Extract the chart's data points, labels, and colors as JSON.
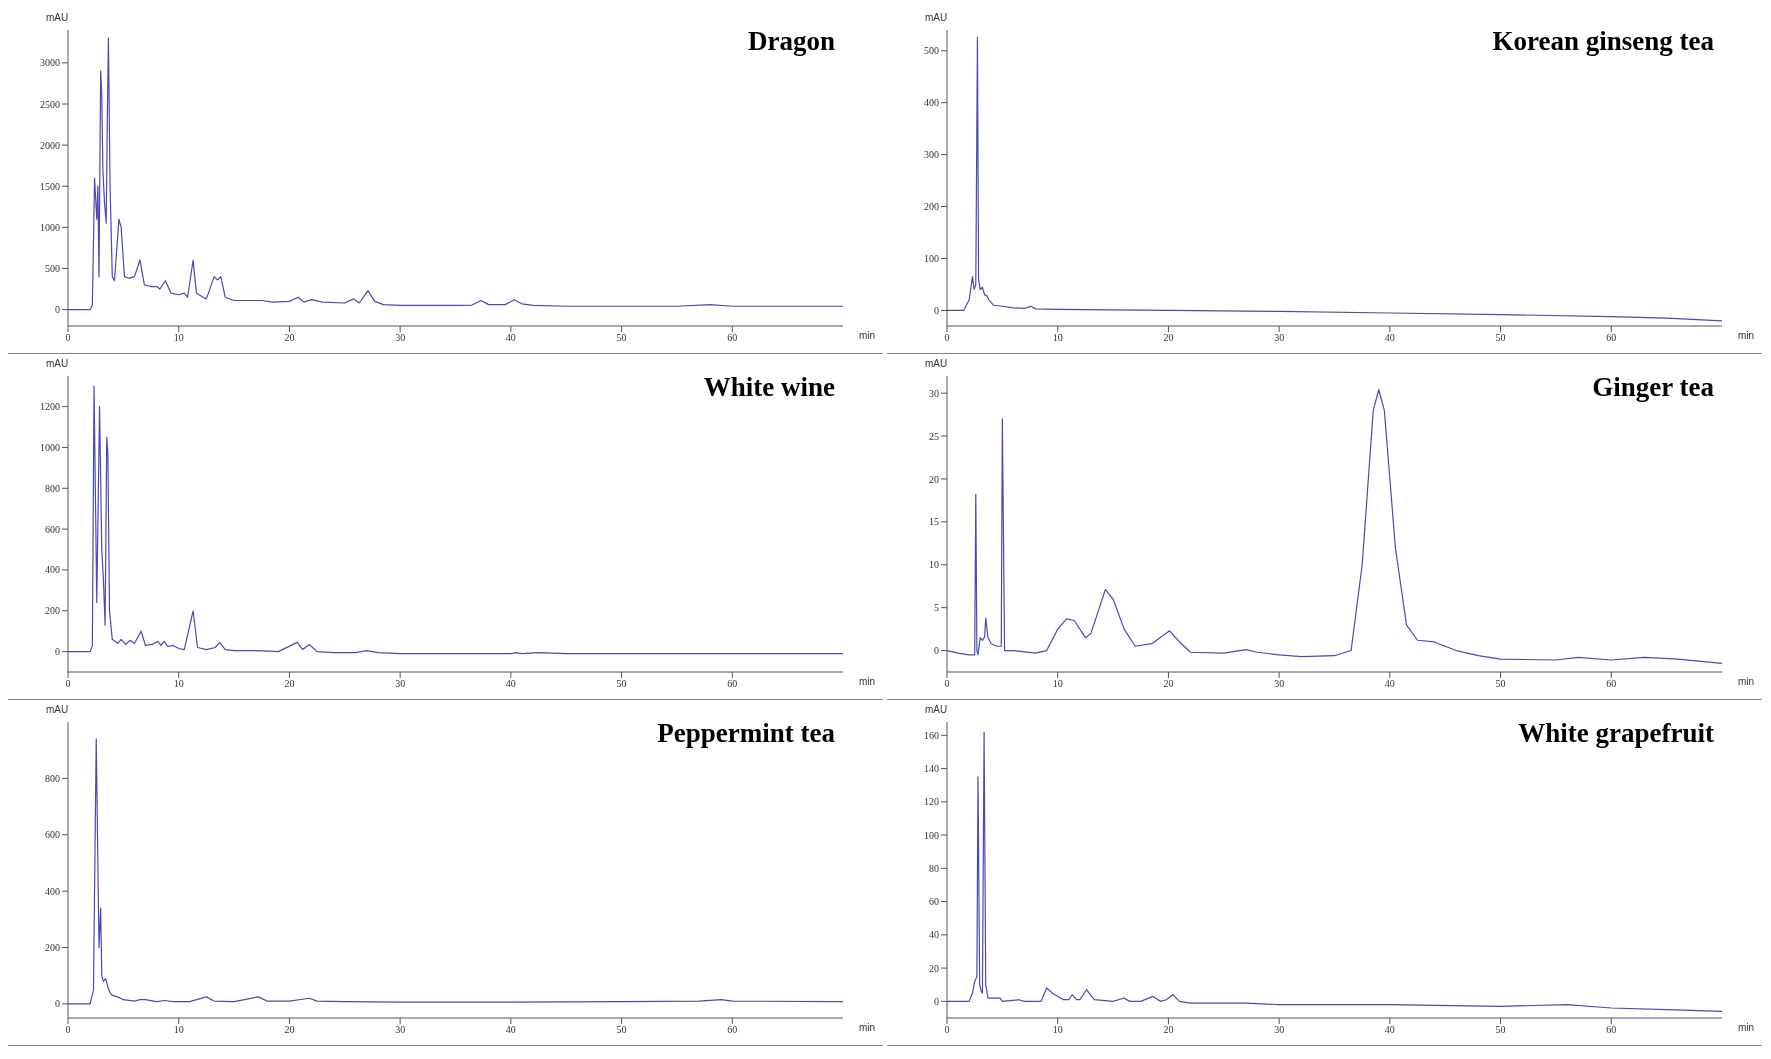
{
  "chart_data": [
    {
      "type": "line",
      "title": "Dragon",
      "xlabel": "min",
      "ylabel": "mAU",
      "xlim": [
        0,
        70
      ],
      "xticks": [
        0,
        10,
        20,
        30,
        40,
        50,
        60
      ],
      "ylim": [
        -200,
        3400
      ],
      "yticks": [
        0,
        500,
        1000,
        1500,
        2000,
        2500,
        3000
      ],
      "series": [
        {
          "color": "#4a4ab4",
          "x": [
            0,
            2,
            2.2,
            2.4,
            2.6,
            2.7,
            2.8,
            2.95,
            3.05,
            3.15,
            3.3,
            3.45,
            3.55,
            3.65,
            3.8,
            4.0,
            4.2,
            4.6,
            4.8,
            5.1,
            5.5,
            6.0,
            6.5,
            6.9,
            7.5,
            8.0,
            8.3,
            8.8,
            9.3,
            10,
            10.5,
            10.8,
            11.3,
            11.6,
            12.2,
            12.5,
            13.2,
            13.5,
            13.8,
            14.2,
            15,
            16,
            17.5,
            18.5,
            20,
            20.8,
            21.3,
            22,
            23,
            25,
            25.8,
            26.3,
            27.1,
            27.7,
            28.5,
            30,
            35,
            36.5,
            37.3,
            38,
            39.5,
            40.3,
            41,
            42,
            45,
            50,
            55,
            58,
            60,
            65,
            70
          ],
          "values": [
            0,
            0,
            50,
            1600,
            1100,
            1500,
            400,
            2900,
            2600,
            1700,
            1300,
            1050,
            2300,
            3300,
            1500,
            400,
            350,
            1100,
            1000,
            400,
            380,
            400,
            600,
            300,
            280,
            280,
            250,
            350,
            200,
            180,
            200,
            150,
            600,
            200,
            150,
            130,
            400,
            360,
            400,
            150,
            110,
            110,
            110,
            90,
            100,
            150,
            90,
            120,
            90,
            80,
            130,
            80,
            230,
            100,
            60,
            50,
            50,
            55,
            110,
            60,
            60,
            120,
            70,
            50,
            40,
            40,
            40,
            60,
            40,
            40,
            40
          ]
        }
      ]
    },
    {
      "type": "line",
      "title": "Korean ginseng tea",
      "xlabel": "min",
      "ylabel": "mAU",
      "xlim": [
        0,
        70
      ],
      "xticks": [
        0,
        10,
        20,
        30,
        40,
        50,
        60
      ],
      "ylim": [
        -30,
        540
      ],
      "yticks": [
        0,
        100,
        200,
        300,
        400,
        500
      ],
      "series": [
        {
          "color": "#4a4ab4",
          "x": [
            0,
            1.5,
            2.0,
            2.3,
            2.45,
            2.6,
            2.75,
            2.85,
            3.0,
            3.2,
            3.4,
            3.6,
            3.8,
            4.2,
            5,
            6,
            7,
            7.6,
            8,
            10,
            20,
            30,
            40,
            50,
            60,
            65,
            70
          ],
          "values": [
            0,
            0,
            20,
            65,
            40,
            50,
            526,
            60,
            40,
            45,
            30,
            28,
            20,
            10,
            8,
            5,
            4,
            8,
            3,
            2,
            0,
            -2,
            -5,
            -8,
            -12,
            -15,
            -20
          ]
        }
      ]
    },
    {
      "type": "line",
      "title": "White wine",
      "xlabel": "min",
      "ylabel": "mAU",
      "xlim": [
        0,
        70
      ],
      "xticks": [
        0,
        10,
        20,
        30,
        40,
        50,
        60
      ],
      "ylim": [
        -100,
        1350
      ],
      "yticks": [
        0,
        200,
        400,
        600,
        800,
        1000,
        1200
      ],
      "series": [
        {
          "color": "#4a4ab4",
          "x": [
            0,
            2,
            2.2,
            2.35,
            2.6,
            2.85,
            3.05,
            3.2,
            3.35,
            3.5,
            3.6,
            3.75,
            4.0,
            4.5,
            4.8,
            5.2,
            5.6,
            6.0,
            6.6,
            7.0,
            7.6,
            8.1,
            8.4,
            8.7,
            9.0,
            9.5,
            10,
            10.5,
            11.3,
            11.7,
            12.5,
            13.3,
            13.7,
            14.2,
            15,
            17,
            19,
            20.7,
            21.2,
            21.8,
            22.5,
            24,
            26,
            27,
            28,
            30,
            40,
            40.5,
            41,
            42.5,
            45,
            60,
            70
          ],
          "values": [
            0,
            0,
            30,
            1300,
            240,
            1200,
            500,
            350,
            130,
            1050,
            970,
            200,
            60,
            40,
            60,
            35,
            55,
            40,
            100,
            30,
            35,
            50,
            30,
            50,
            25,
            30,
            15,
            10,
            200,
            20,
            10,
            20,
            45,
            10,
            5,
            5,
            0,
            45,
            10,
            35,
            0,
            -5,
            -5,
            5,
            -5,
            -10,
            -10,
            -5,
            -10,
            -5,
            -10,
            -10,
            -10
          ]
        }
      ]
    },
    {
      "type": "line",
      "title": "Ginger tea",
      "xlabel": "min",
      "ylabel": "mAU",
      "xlim": [
        0,
        70
      ],
      "xticks": [
        0,
        10,
        20,
        30,
        40,
        50,
        60
      ],
      "ylim": [
        -2.5,
        32
      ],
      "yticks": [
        0,
        5,
        10,
        15,
        20,
        25,
        30
      ],
      "series": [
        {
          "color": "#4a4ab4",
          "x": [
            0,
            1,
            2,
            2.5,
            2.6,
            2.7,
            2.8,
            3.0,
            3.2,
            3.4,
            3.5,
            3.7,
            4.0,
            4.5,
            4.9,
            5.0,
            5.2,
            6,
            8,
            9,
            10,
            10.8,
            11.5,
            12.5,
            13,
            14.3,
            15,
            16,
            17,
            18.5,
            20.1,
            21,
            22,
            25,
            27,
            28,
            30,
            32,
            35,
            36.5,
            37.5,
            38.5,
            39,
            39.5,
            40.5,
            41.5,
            42.5,
            44,
            46,
            48,
            50,
            55,
            57,
            60,
            63,
            66,
            70
          ],
          "values": [
            0,
            -0.3,
            -0.5,
            -0.5,
            18.2,
            0,
            -0.5,
            1.5,
            1.2,
            1.6,
            3.8,
            1.5,
            0.8,
            0.5,
            0.5,
            27,
            0,
            0,
            -0.3,
            0,
            2.5,
            3.7,
            3.5,
            1.5,
            2,
            7.1,
            6,
            2.5,
            0.5,
            0.8,
            2.3,
            1,
            -0.2,
            -0.3,
            0.1,
            -0.2,
            -0.5,
            -0.7,
            -0.6,
            0,
            10,
            28,
            30.4,
            28,
            12,
            3,
            1.2,
            1,
            0,
            -0.6,
            -1,
            -1.1,
            -0.8,
            -1.1,
            -0.8,
            -1,
            -1.5
          ]
        }
      ]
    },
    {
      "type": "line",
      "title": "Peppermint tea",
      "xlabel": "min",
      "ylabel": "mAU",
      "xlim": [
        0,
        70
      ],
      "xticks": [
        0,
        10,
        20,
        30,
        40,
        50,
        60
      ],
      "ylim": [
        -50,
        1000
      ],
      "yticks": [
        0,
        200,
        400,
        600,
        800
      ],
      "series": [
        {
          "color": "#4a4ab4",
          "x": [
            0,
            2,
            2.3,
            2.55,
            2.8,
            2.95,
            3.05,
            3.2,
            3.4,
            3.6,
            3.8,
            4.0,
            4.5,
            5,
            6,
            6.5,
            7,
            8,
            8.7,
            9.5,
            11,
            12.5,
            13.2,
            15,
            17.2,
            18,
            20,
            21.8,
            22.5,
            25,
            30,
            40,
            50,
            57,
            59,
            60,
            70
          ],
          "values": [
            0,
            0,
            50,
            940,
            200,
            340,
            100,
            80,
            90,
            60,
            40,
            30,
            25,
            15,
            10,
            15,
            15,
            8,
            12,
            8,
            8,
            25,
            10,
            8,
            25,
            10,
            10,
            20,
            10,
            8,
            6,
            6,
            8,
            10,
            15,
            10,
            8
          ]
        }
      ]
    },
    {
      "type": "line",
      "title": "White grapefruit",
      "xlabel": "min",
      "ylabel": "mAU",
      "xlim": [
        0,
        70
      ],
      "xticks": [
        0,
        10,
        20,
        30,
        40,
        50,
        60
      ],
      "ylim": [
        -10,
        168
      ],
      "yticks": [
        0,
        20,
        40,
        60,
        80,
        100,
        120,
        140,
        160
      ],
      "series": [
        {
          "color": "#4a4ab4",
          "x": [
            0,
            2,
            2.3,
            2.5,
            2.7,
            2.8,
            2.95,
            3.1,
            3.2,
            3.35,
            3.5,
            3.7,
            4.8,
            5,
            6.5,
            7,
            8.5,
            9,
            9.5,
            10.5,
            11,
            11.3,
            11.7,
            12,
            12.6,
            13.3,
            15,
            16,
            16.5,
            17.5,
            18.6,
            19.3,
            19.8,
            20.4,
            21,
            22,
            27,
            30,
            40,
            50,
            56,
            60,
            65,
            70
          ],
          "values": [
            0,
            0,
            5,
            12,
            15,
            135,
            10,
            6,
            5,
            162,
            10,
            2,
            2,
            0,
            1,
            0,
            0,
            8,
            5,
            1,
            1,
            4,
            1,
            1,
            7,
            1,
            0,
            2,
            0,
            0,
            3,
            0,
            1,
            4,
            0,
            -1,
            -1,
            -2,
            -2,
            -3,
            -2,
            -4,
            -5,
            -6
          ]
        }
      ]
    }
  ]
}
